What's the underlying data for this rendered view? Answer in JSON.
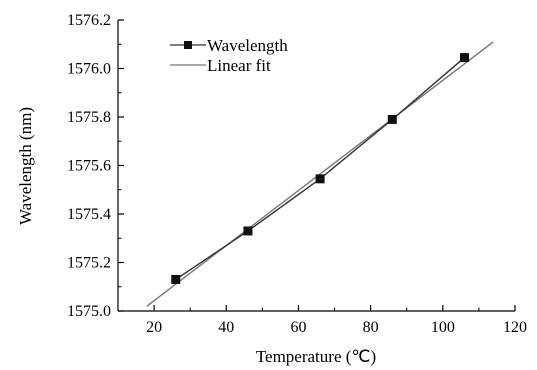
{
  "chart_data": {
    "type": "line",
    "xlabel": "Temperature (℃)",
    "ylabel": "Wavelength (nm)",
    "xlim": [
      10,
      120
    ],
    "ylim": [
      1575.0,
      1576.2
    ],
    "x_ticks": [
      20,
      40,
      60,
      80,
      100,
      120
    ],
    "x_tick_labels": [
      "20",
      "40",
      "60",
      "80",
      "100",
      "120"
    ],
    "y_ticks": [
      1575.0,
      1575.2,
      1575.4,
      1575.6,
      1575.8,
      1576.0,
      1576.2
    ],
    "y_tick_labels": [
      "1575.0",
      "1575.2",
      "1575.4",
      "1575.6",
      "1575.8",
      "1576.0",
      "1576.2"
    ],
    "legend_position": "top-left",
    "grid": false,
    "series": [
      {
        "name": "Wavelength",
        "style": "line-with-square-markers",
        "color": "#333333",
        "x": [
          26,
          46,
          66,
          86,
          106
        ],
        "y": [
          1575.13,
          1575.33,
          1575.545,
          1575.79,
          1576.045
        ]
      },
      {
        "name": "Linear fit",
        "style": "line",
        "color": "#777777",
        "x": [
          18,
          114
        ],
        "y": [
          1575.02,
          1576.11
        ]
      }
    ]
  }
}
